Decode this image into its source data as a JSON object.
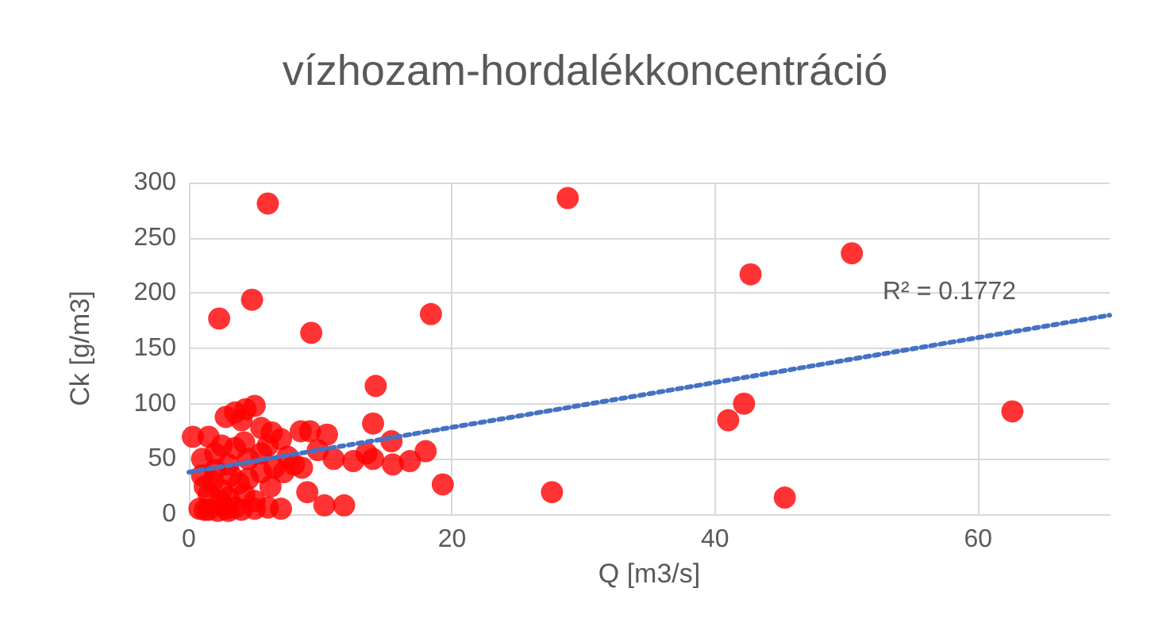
{
  "chart_data": {
    "type": "scatter",
    "title": "vízhozam-hordalékkoncentráció",
    "xlabel": "Q [m3/s]",
    "ylabel": "Ck [g/m3]",
    "xlim": [
      0,
      70
    ],
    "xticks": [
      0,
      20,
      40,
      60
    ],
    "ylim": [
      0,
      300
    ],
    "yticks": [
      0,
      50,
      100,
      150,
      200,
      250,
      300
    ],
    "grid": true,
    "marker": "circle",
    "series": [
      {
        "color": "#ff0000",
        "x": [
          6.0,
          28.8,
          2.3,
          4.8,
          9.3,
          18.4,
          14.2,
          42.7,
          50.4,
          42.2,
          41.0,
          62.6,
          45.3,
          27.6,
          19.3,
          15.4,
          14.0,
          0.8,
          1.5,
          2.2,
          2.8,
          3.5,
          4.0,
          5.0,
          6.0,
          7.0,
          10.3,
          11.8,
          1.2,
          3.0,
          1.2,
          1.8,
          2.5,
          3.2,
          3.8,
          4.5,
          5.5,
          6.5,
          7.2,
          8.0,
          9.0,
          2.0,
          1.0,
          3.0,
          4.2,
          5.0,
          2.4,
          1.5,
          6.2,
          0.3,
          1.5,
          2.5,
          3.5,
          4.2,
          5.5,
          6.3,
          7.0,
          8.5,
          9.2,
          10.5,
          11.0,
          12.5,
          13.5,
          14.0,
          15.5,
          16.8,
          18.0,
          1.0,
          2.0,
          3.0,
          4.5,
          5.5,
          7.5,
          8.6,
          9.8,
          2.8,
          3.5,
          4.3,
          5.0,
          6.0,
          4.0
        ],
        "values": [
          281,
          286,
          177,
          194,
          164,
          181,
          116,
          217,
          236,
          100,
          85,
          93,
          15,
          20,
          27,
          66,
          82,
          5,
          4,
          3,
          5,
          6,
          4,
          5,
          6,
          5,
          8,
          8,
          4,
          3,
          25,
          30,
          22,
          35,
          28,
          32,
          38,
          42,
          38,
          45,
          20,
          40,
          35,
          15,
          18,
          12,
          12,
          18,
          25,
          70,
          70,
          62,
          60,
          65,
          78,
          74,
          68,
          75,
          75,
          72,
          50,
          48,
          55,
          50,
          45,
          48,
          57,
          50,
          55,
          45,
          50,
          55,
          52,
          42,
          58,
          88,
          92,
          95,
          98,
          62,
          85
        ]
      },
      {
        "type": "line",
        "color": "#4472c4",
        "line_style": "dotted",
        "marker": "none",
        "x": [
          0,
          70
        ],
        "values": [
          38,
          180
        ]
      }
    ],
    "annotations": [
      "R² = 0.1772"
    ]
  }
}
